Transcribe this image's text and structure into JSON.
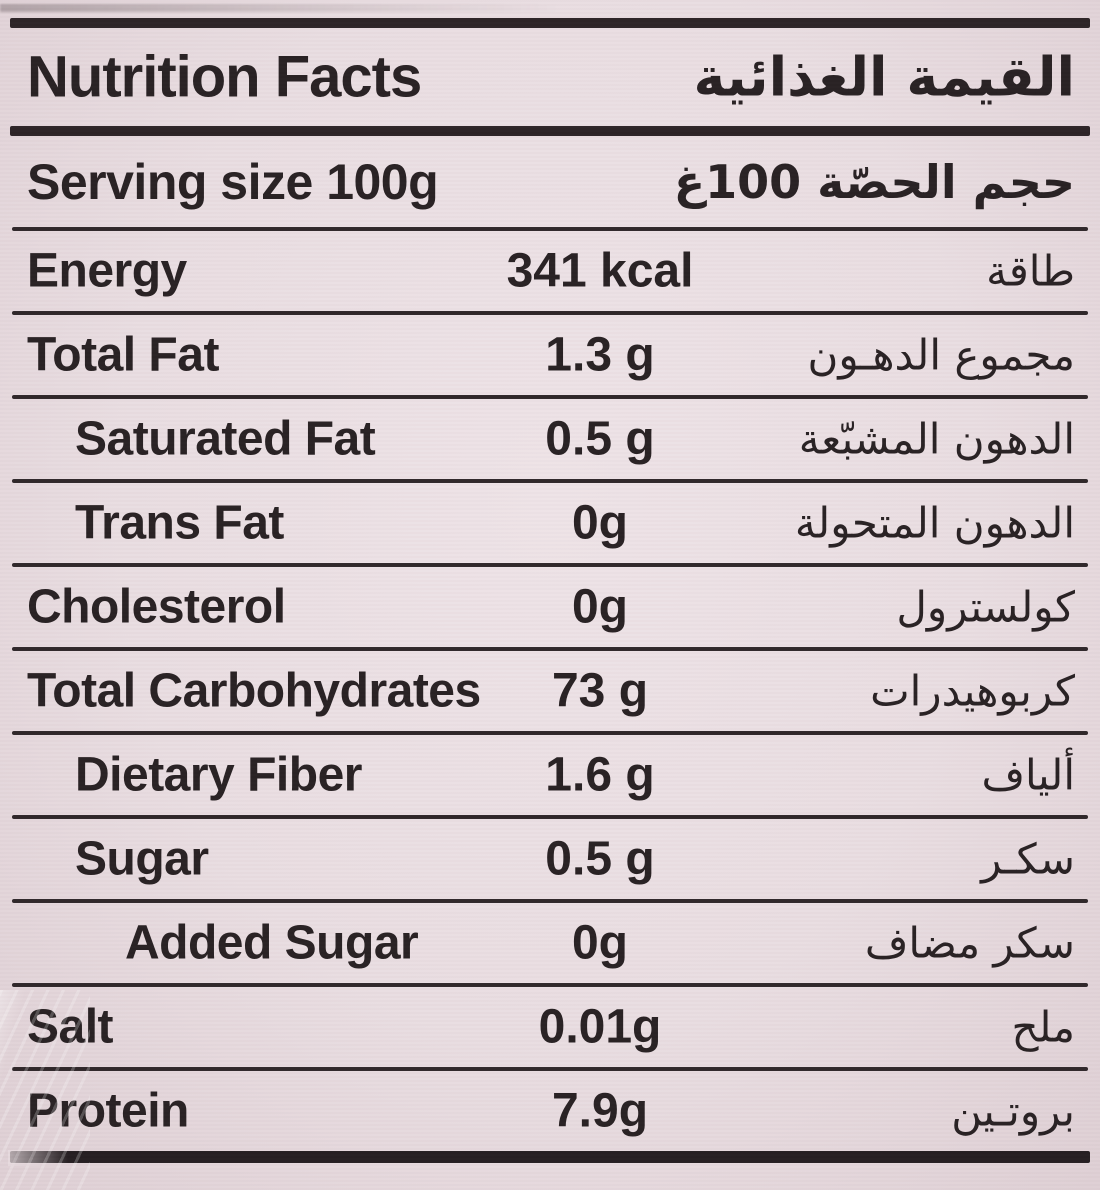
{
  "colors": {
    "background": "#e9dde1",
    "ink": "#272022",
    "rule": "#2b2225"
  },
  "header": {
    "title_en": "Nutrition Facts",
    "title_ar": "القيمة الغذائية"
  },
  "serving": {
    "label_en": "Serving size 100g",
    "label_ar": "حجم الحصّة 100غ"
  },
  "rows": [
    {
      "label_en": "Energy",
      "value": "341 kcal",
      "label_ar": "طاقة",
      "indent": 0
    },
    {
      "label_en": "Total Fat",
      "value": "1.3 g",
      "label_ar": "مجموع الدهـون",
      "indent": 0
    },
    {
      "label_en": "Saturated Fat",
      "value": "0.5 g",
      "label_ar": "الدهون المشبّعة",
      "indent": 1
    },
    {
      "label_en": "Trans Fat",
      "value": "0g",
      "label_ar": "الدهون المتحولة",
      "indent": 1
    },
    {
      "label_en": "Cholesterol",
      "value": "0g",
      "label_ar": "كولسترول",
      "indent": 0
    },
    {
      "label_en": "Total Carbohydrates",
      "value": "73 g",
      "label_ar": "كربوهيدرات",
      "indent": 0
    },
    {
      "label_en": "Dietary Fiber",
      "value": "1.6 g",
      "label_ar": "ألياف",
      "indent": 1
    },
    {
      "label_en": "Sugar",
      "value": "0.5 g",
      "label_ar": "سكـر",
      "indent": 1
    },
    {
      "label_en": "Added Sugar",
      "value": "0g",
      "label_ar": "سكر مضاف",
      "indent": 2
    },
    {
      "label_en": "Salt",
      "value": "0.01g",
      "label_ar": "ملح",
      "indent": 0
    },
    {
      "label_en": "Protein",
      "value": "7.9g",
      "label_ar": "بروتـين",
      "indent": 0
    }
  ]
}
